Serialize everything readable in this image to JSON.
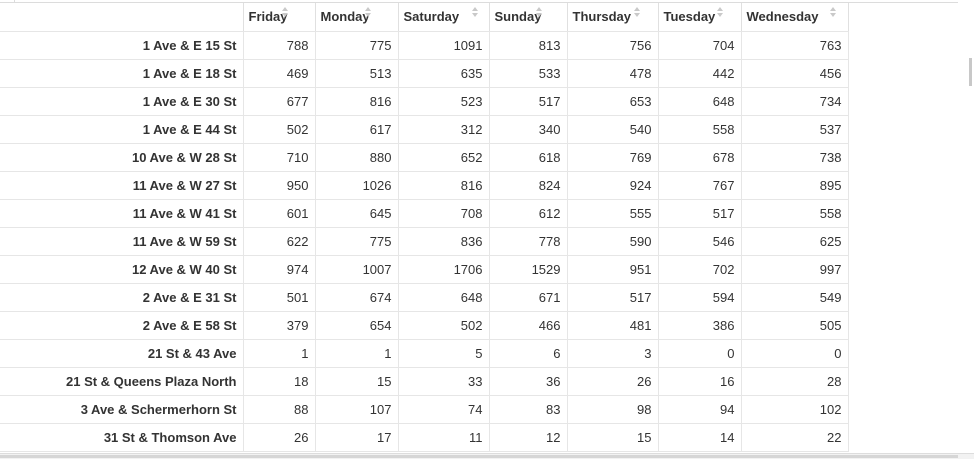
{
  "table": {
    "columns": [
      {
        "key": "friday",
        "label": "Friday"
      },
      {
        "key": "monday",
        "label": "Monday"
      },
      {
        "key": "saturday",
        "label": "Saturday"
      },
      {
        "key": "sunday",
        "label": "Sunday"
      },
      {
        "key": "thursday",
        "label": "Thursday"
      },
      {
        "key": "tuesday",
        "label": "Tuesday"
      },
      {
        "key": "wednesday",
        "label": "Wednesday"
      }
    ],
    "rows": [
      {
        "name": "1 Ave & E 15 St",
        "values": [
          "788",
          "775",
          "1091",
          "813",
          "756",
          "704",
          "763"
        ]
      },
      {
        "name": "1 Ave & E 18 St",
        "values": [
          "469",
          "513",
          "635",
          "533",
          "478",
          "442",
          "456"
        ]
      },
      {
        "name": "1 Ave & E 30 St",
        "values": [
          "677",
          "816",
          "523",
          "517",
          "653",
          "648",
          "734"
        ]
      },
      {
        "name": "1 Ave & E 44 St",
        "values": [
          "502",
          "617",
          "312",
          "340",
          "540",
          "558",
          "537"
        ]
      },
      {
        "name": "10 Ave & W 28 St",
        "values": [
          "710",
          "880",
          "652",
          "618",
          "769",
          "678",
          "738"
        ]
      },
      {
        "name": "11 Ave & W 27 St",
        "values": [
          "950",
          "1026",
          "816",
          "824",
          "924",
          "767",
          "895"
        ]
      },
      {
        "name": "11 Ave & W 41 St",
        "values": [
          "601",
          "645",
          "708",
          "612",
          "555",
          "517",
          "558"
        ]
      },
      {
        "name": "11 Ave & W 59 St",
        "values": [
          "622",
          "775",
          "836",
          "778",
          "590",
          "546",
          "625"
        ]
      },
      {
        "name": "12 Ave & W 40 St",
        "values": [
          "974",
          "1007",
          "1706",
          "1529",
          "951",
          "702",
          "997"
        ]
      },
      {
        "name": "2 Ave & E 31 St",
        "values": [
          "501",
          "674",
          "648",
          "671",
          "517",
          "594",
          "549"
        ]
      },
      {
        "name": "2 Ave & E 58 St",
        "values": [
          "379",
          "654",
          "502",
          "466",
          "481",
          "386",
          "505"
        ]
      },
      {
        "name": "21 St & 43 Ave",
        "values": [
          "1",
          "1",
          "5",
          "6",
          "3",
          "0",
          "0"
        ]
      },
      {
        "name": "21 St & Queens Plaza North",
        "values": [
          "18",
          "15",
          "33",
          "36",
          "26",
          "16",
          "28"
        ]
      },
      {
        "name": "3 Ave & Schermerhorn St",
        "values": [
          "88",
          "107",
          "74",
          "83",
          "98",
          "94",
          "102"
        ]
      },
      {
        "name": "31 St & Thomson Ave",
        "values": [
          "26",
          "17",
          "11",
          "12",
          "15",
          "14",
          "22"
        ]
      }
    ]
  },
  "icons": {
    "sort": "sort-both-icon"
  }
}
